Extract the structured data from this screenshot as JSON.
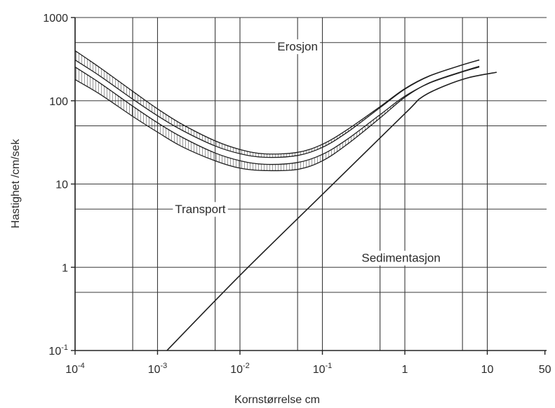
{
  "chart_data": {
    "type": "line",
    "title": "",
    "xlabel": "Kornstørrelse cm",
    "ylabel": "Hastighet /cm/sek",
    "x_scale": "log",
    "y_scale": "log",
    "xlim": [
      0.0001,
      50
    ],
    "ylim": [
      0.1,
      1000
    ],
    "grid": true,
    "x_ticks": [
      {
        "value": 0.0001,
        "base": "10",
        "exp": "-4"
      },
      {
        "value": 0.001,
        "base": "10",
        "exp": "-3"
      },
      {
        "value": 0.01,
        "base": "10",
        "exp": "-2"
      },
      {
        "value": 0.1,
        "base": "10",
        "exp": "-1"
      },
      {
        "value": 1,
        "base": "1",
        "exp": ""
      },
      {
        "value": 10,
        "base": "10",
        "exp": ""
      },
      {
        "value": 50,
        "base": "50",
        "exp": ""
      }
    ],
    "y_ticks": [
      {
        "value": 1000,
        "base": "1000",
        "exp": ""
      },
      {
        "value": 100,
        "base": "100",
        "exp": ""
      },
      {
        "value": 10,
        "base": "10",
        "exp": ""
      },
      {
        "value": 1,
        "base": "1",
        "exp": ""
      },
      {
        "value": 0.1,
        "base": "10",
        "exp": "-1"
      }
    ],
    "minor_x_grid": [
      0.0005,
      0.005,
      0.05,
      0.5,
      5
    ],
    "minor_y_grid": [
      500,
      50,
      5,
      0.5
    ],
    "regions": [
      {
        "label": "Erosjon",
        "x": 0.05,
        "y": 450
      },
      {
        "label": "Transport",
        "x": 0.0033,
        "y": 5
      },
      {
        "label": "Sedimentasjon",
        "x": 0.9,
        "y": 1.3
      }
    ],
    "series": [
      {
        "role": "erosion-band",
        "upper": {
          "x": [
            0.0001,
            0.0002,
            0.0005,
            0.001,
            0.002,
            0.005,
            0.01,
            0.02,
            0.05,
            0.1,
            0.2,
            0.5,
            1,
            2,
            5,
            8
          ],
          "y": [
            400,
            250,
            130,
            80,
            52,
            33,
            26,
            23,
            24,
            30,
            45,
            85,
            140,
            200,
            270,
            310
          ]
        },
        "middle": {
          "x": [
            0.0001,
            0.0002,
            0.0005,
            0.001,
            0.002,
            0.005,
            0.01,
            0.02,
            0.05,
            0.1,
            0.2,
            0.5,
            1,
            2,
            5,
            8
          ],
          "y": [
            280,
            180,
            95,
            60,
            40,
            26,
            21,
            19,
            20,
            25,
            38,
            75,
            125,
            180,
            245,
            280
          ]
        },
        "lower": {
          "x": [
            0.0001,
            0.0002,
            0.0005,
            0.001,
            0.002,
            0.005,
            0.01,
            0.02,
            0.05,
            0.1,
            0.2,
            0.5,
            1,
            2,
            5,
            8
          ],
          "y": [
            180,
            120,
            65,
            42,
            28,
            19,
            15.5,
            14.5,
            15,
            19,
            30,
            62,
            110,
            165,
            225,
            260
          ]
        }
      },
      {
        "role": "sedimentation-line",
        "x": [
          0.0013,
          0.01,
          0.1,
          1,
          1.6,
          3,
          6,
          13
        ],
        "y": [
          0.1,
          0.8,
          7.5,
          70,
          110,
          150,
          190,
          220
        ]
      }
    ]
  }
}
